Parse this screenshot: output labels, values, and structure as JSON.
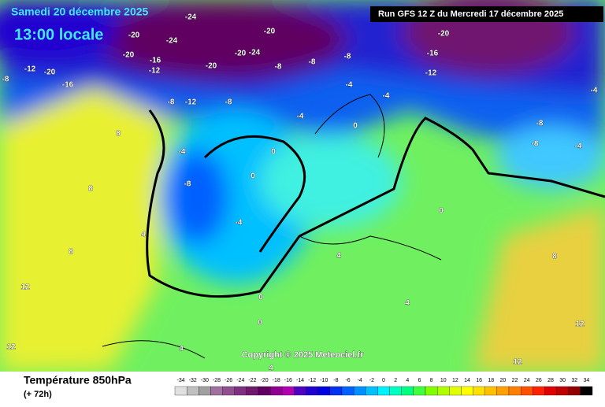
{
  "header": {
    "date": "Samedi 20 décembre 2025",
    "time": "13:00 locale",
    "run": "Run GFS 12 Z du Mercredi 17 décembre 2025"
  },
  "footer": {
    "title": "Température 850hPa",
    "lead": "(+ 72h)",
    "copyright": "Copyright © 2025 Meteociel.fr"
  },
  "legend": {
    "values": [
      -34,
      -32,
      -30,
      -28,
      -26,
      -24,
      -22,
      -20,
      -18,
      -16,
      -14,
      -12,
      -10,
      -8,
      -6,
      -4,
      -2,
      0,
      2,
      4,
      6,
      8,
      10,
      12,
      14,
      16,
      18,
      20,
      22,
      24,
      26,
      28,
      30,
      32,
      34
    ],
    "colors": [
      "#e0e0e0",
      "#c0c0c0",
      "#a0a0a0",
      "#a070a0",
      "#905090",
      "#803080",
      "#701870",
      "#600060",
      "#900090",
      "#b000b0",
      "#5000c0",
      "#2000d0",
      "#0000e0",
      "#0030f0",
      "#0060ff",
      "#0090ff",
      "#00c0ff",
      "#00f0ff",
      "#00ffc0",
      "#00ff80",
      "#40ff40",
      "#80ff00",
      "#b0ff00",
      "#e0ff00",
      "#ffff00",
      "#ffe000",
      "#ffc000",
      "#ffa000",
      "#ff8000",
      "#ff5000",
      "#ff2000",
      "#e00000",
      "#c00000",
      "#900000",
      "#000000"
    ]
  },
  "contour_labels": [
    "-24",
    "-20",
    "-24",
    "-20",
    "-16",
    "-12",
    "-20",
    "-20",
    "-24",
    "-20",
    "-12",
    "-20",
    "-16",
    "-8",
    "-8",
    "-12",
    "-8",
    "-8",
    "-8",
    "-8",
    "-16",
    "-12",
    "-20",
    "-4",
    "-4",
    "-4",
    "-4",
    "-8",
    "-4",
    "0",
    "0",
    "0",
    "0",
    "8",
    "8",
    "4",
    "8",
    "12",
    "12",
    "4",
    "4",
    "0",
    "0",
    "4",
    "4",
    "8",
    "12",
    "12",
    "-8",
    "-4",
    "-8",
    "-4"
  ]
}
